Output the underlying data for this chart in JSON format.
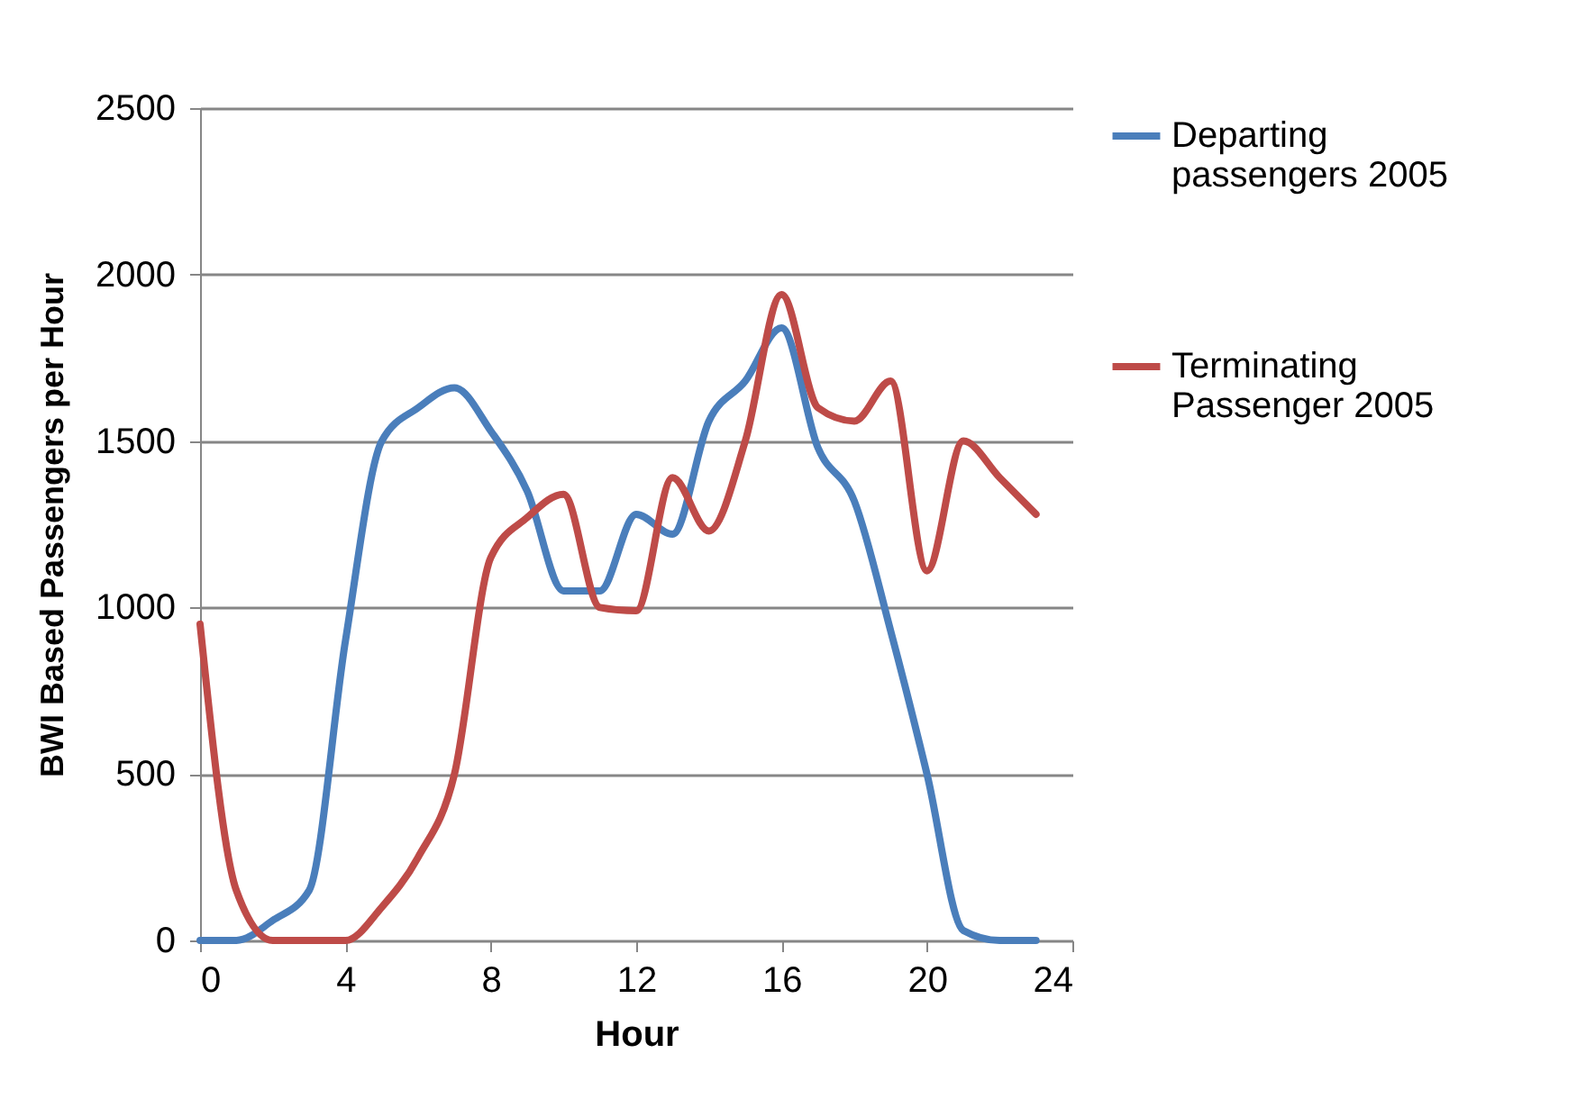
{
  "chart_data": {
    "type": "line",
    "xlabel": "Hour",
    "ylabel": "BWI Based Passengers per Hour",
    "x": [
      0,
      1,
      2,
      3,
      4,
      5,
      6,
      7,
      8,
      9,
      10,
      11,
      12,
      13,
      14,
      15,
      16,
      17,
      18,
      19,
      20,
      21,
      22,
      23
    ],
    "series": [
      {
        "name": "Departing passengers 2005",
        "color": "#4a7ebb",
        "values": [
          0,
          0,
          60,
          150,
          900,
          1500,
          1600,
          1660,
          1530,
          1350,
          1050,
          1050,
          1280,
          1220,
          1560,
          1680,
          1840,
          1480,
          1320,
          930,
          500,
          30,
          0,
          0
        ]
      },
      {
        "name": "Terminating Passenger 2005",
        "color": "#be4b48",
        "values": [
          950,
          150,
          0,
          0,
          0,
          100,
          250,
          500,
          1150,
          1270,
          1340,
          1000,
          990,
          1390,
          1230,
          1500,
          1940,
          1600,
          1560,
          1680,
          1110,
          1500,
          1390,
          1280
        ]
      }
    ],
    "xlim": [
      0,
      24
    ],
    "xticks": [
      0,
      4,
      8,
      12,
      16,
      20,
      24
    ],
    "ylim": [
      0,
      2500
    ],
    "yticks": [
      0,
      500,
      1000,
      1500,
      2000,
      2500
    ],
    "grid": "y",
    "legend": "right",
    "marker": "none",
    "line_style": "solid"
  }
}
